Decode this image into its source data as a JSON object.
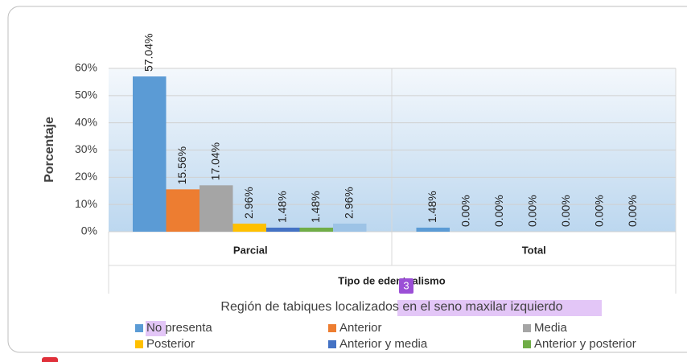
{
  "chart_data": {
    "type": "bar",
    "title": "Región de tabiques localizados en el seno maxilar izquierdo",
    "x_label": "Tipo de edentualismo",
    "y_label": "Porcentaje",
    "categories": [
      "Parcial",
      "Total"
    ],
    "series": [
      {
        "name": "No presenta",
        "color": "#5b9bd5",
        "values": [
          57.04,
          1.48
        ],
        "value_labels": [
          "57.04%",
          "1.48%"
        ]
      },
      {
        "name": "Anterior",
        "color": "#ed7d31",
        "values": [
          15.56,
          0
        ],
        "value_labels": [
          "15.56%",
          "0.00%"
        ]
      },
      {
        "name": "Media",
        "color": "#a5a5a5",
        "values": [
          17.04,
          0
        ],
        "value_labels": [
          "17.04%",
          "0.00%"
        ]
      },
      {
        "name": "Posterior",
        "color": "#ffc000",
        "values": [
          2.96,
          0
        ],
        "value_labels": [
          "2.96%",
          "0.00%"
        ]
      },
      {
        "name": "Anterior y media",
        "color": "#4472c4",
        "values": [
          1.48,
          0
        ],
        "value_labels": [
          "1.48%",
          "0.00%"
        ]
      },
      {
        "name": "Anterior y posterior",
        "color": "#70ad47",
        "values": [
          1.48,
          0
        ],
        "value_labels": [
          "1.48%",
          "0.00%"
        ]
      },
      {
        "color": "#9dc3e6",
        "values": [
          2.96,
          0
        ],
        "value_labels": [
          "2.96%",
          "0.00%"
        ]
      }
    ],
    "ylim": [
      0,
      60
    ],
    "yticks": [
      {
        "value": 0,
        "label": "0%"
      },
      {
        "value": 10,
        "label": "10%"
      },
      {
        "value": 20,
        "label": "20%"
      },
      {
        "value": 30,
        "label": "30%"
      },
      {
        "value": 40,
        "label": "40%"
      },
      {
        "value": 50,
        "label": "50%"
      },
      {
        "value": 60,
        "label": "60%"
      }
    ],
    "grid": true
  },
  "badge": "3"
}
